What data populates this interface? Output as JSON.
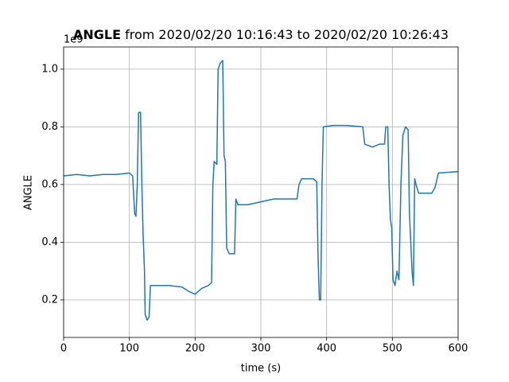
{
  "chart_data": {
    "type": "line",
    "title_bold": "ANGLE",
    "title": "from 2020/02/20 10:16:43 to 2020/02/20 10:26:43",
    "x_label": "time (s)",
    "y_label": "ANGLE",
    "y_offset_label": "1e9",
    "xlim": [
      0,
      600
    ],
    "xticks": [
      0,
      100,
      200,
      300,
      400,
      500,
      600
    ],
    "ylim": [
      0.07,
      1.077
    ],
    "yticks": [
      0.2,
      0.4,
      0.6,
      0.8,
      {
        "value": 1.0,
        "label": "1.0"
      }
    ],
    "grid": true,
    "series": [
      {
        "name": "ANGLE",
        "color": "#1f77b4",
        "x": [
          0,
          20,
          40,
          60,
          80,
          100,
          105,
          108,
          110,
          112,
          114,
          117,
          119,
          121,
          123,
          124,
          127,
          130,
          132,
          140,
          160,
          180,
          190,
          200,
          210,
          220,
          225,
          227,
          229,
          233,
          235,
          238,
          242,
          244,
          246,
          248,
          252,
          256,
          260,
          262,
          265,
          280,
          300,
          320,
          340,
          355,
          358,
          362,
          380,
          385,
          387,
          389,
          391,
          393,
          395,
          410,
          430,
          455,
          458,
          470,
          480,
          488,
          490,
          493,
          495,
          497,
          499,
          501,
          504,
          507,
          510,
          513,
          516,
          520,
          524,
          526,
          528,
          530,
          532,
          534,
          536,
          540,
          560,
          565,
          570,
          600
        ],
        "values": [
          0.63,
          0.635,
          0.63,
          0.635,
          0.635,
          0.64,
          0.63,
          0.5,
          0.49,
          0.6,
          0.85,
          0.85,
          0.6,
          0.42,
          0.3,
          0.15,
          0.13,
          0.14,
          0.25,
          0.25,
          0.25,
          0.245,
          0.23,
          0.22,
          0.24,
          0.25,
          0.26,
          0.6,
          0.68,
          0.67,
          1.0,
          1.02,
          1.03,
          0.7,
          0.68,
          0.38,
          0.36,
          0.36,
          0.36,
          0.55,
          0.53,
          0.53,
          0.54,
          0.55,
          0.55,
          0.55,
          0.6,
          0.62,
          0.62,
          0.61,
          0.35,
          0.2,
          0.2,
          0.6,
          0.8,
          0.805,
          0.805,
          0.8,
          0.74,
          0.73,
          0.74,
          0.74,
          0.8,
          0.8,
          0.6,
          0.48,
          0.45,
          0.27,
          0.25,
          0.3,
          0.27,
          0.6,
          0.77,
          0.8,
          0.79,
          0.5,
          0.4,
          0.3,
          0.25,
          0.62,
          0.6,
          0.57,
          0.57,
          0.59,
          0.64,
          0.645
        ]
      }
    ]
  }
}
